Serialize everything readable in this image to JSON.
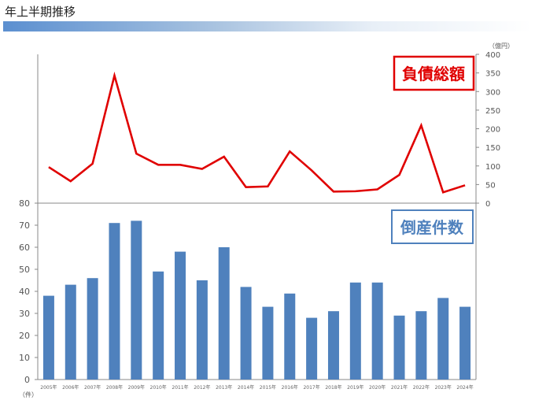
{
  "page_title": "年上半期推移",
  "chart_data": [
    {
      "type": "line",
      "title": "負債総額",
      "unit_label": "（億円）",
      "x": [
        "2005年",
        "2006年",
        "2007年",
        "2008年",
        "2009年",
        "2010年",
        "2011年",
        "2012年",
        "2013年",
        "2014年",
        "2015年",
        "2016年",
        "2017年",
        "2018年",
        "2019年",
        "2020年",
        "2021年",
        "2022年",
        "2023年",
        "2024年"
      ],
      "values": [
        97,
        59,
        106,
        343,
        133,
        103,
        103,
        92,
        125,
        43,
        45,
        139,
        88,
        31,
        32,
        37,
        76,
        209,
        29,
        48
      ],
      "ylim": [
        0,
        400
      ],
      "yticks": [
        0,
        50,
        100,
        150,
        200,
        250,
        300,
        350,
        400
      ],
      "y_axis": "right",
      "color": "#e00000",
      "grid": false
    },
    {
      "type": "bar",
      "title": "倒産件数",
      "unit_label": "（件）",
      "categories": [
        "2005年",
        "2006年",
        "2007年",
        "2008年",
        "2009年",
        "2010年",
        "2011年",
        "2012年",
        "2013年",
        "2014年",
        "2015年",
        "2016年",
        "2017年",
        "2018年",
        "2019年",
        "2020年",
        "2021年",
        "2022年",
        "2023年",
        "2024年"
      ],
      "values": [
        38,
        43,
        46,
        71,
        72,
        49,
        58,
        45,
        60,
        42,
        33,
        39,
        28,
        31,
        44,
        44,
        29,
        31,
        37,
        33
      ],
      "ylim": [
        0,
        80
      ],
      "yticks": [
        0,
        10,
        20,
        30,
        40,
        50,
        60,
        70,
        80
      ],
      "y_axis": "left",
      "color": "#4f81bd",
      "grid": false
    }
  ]
}
